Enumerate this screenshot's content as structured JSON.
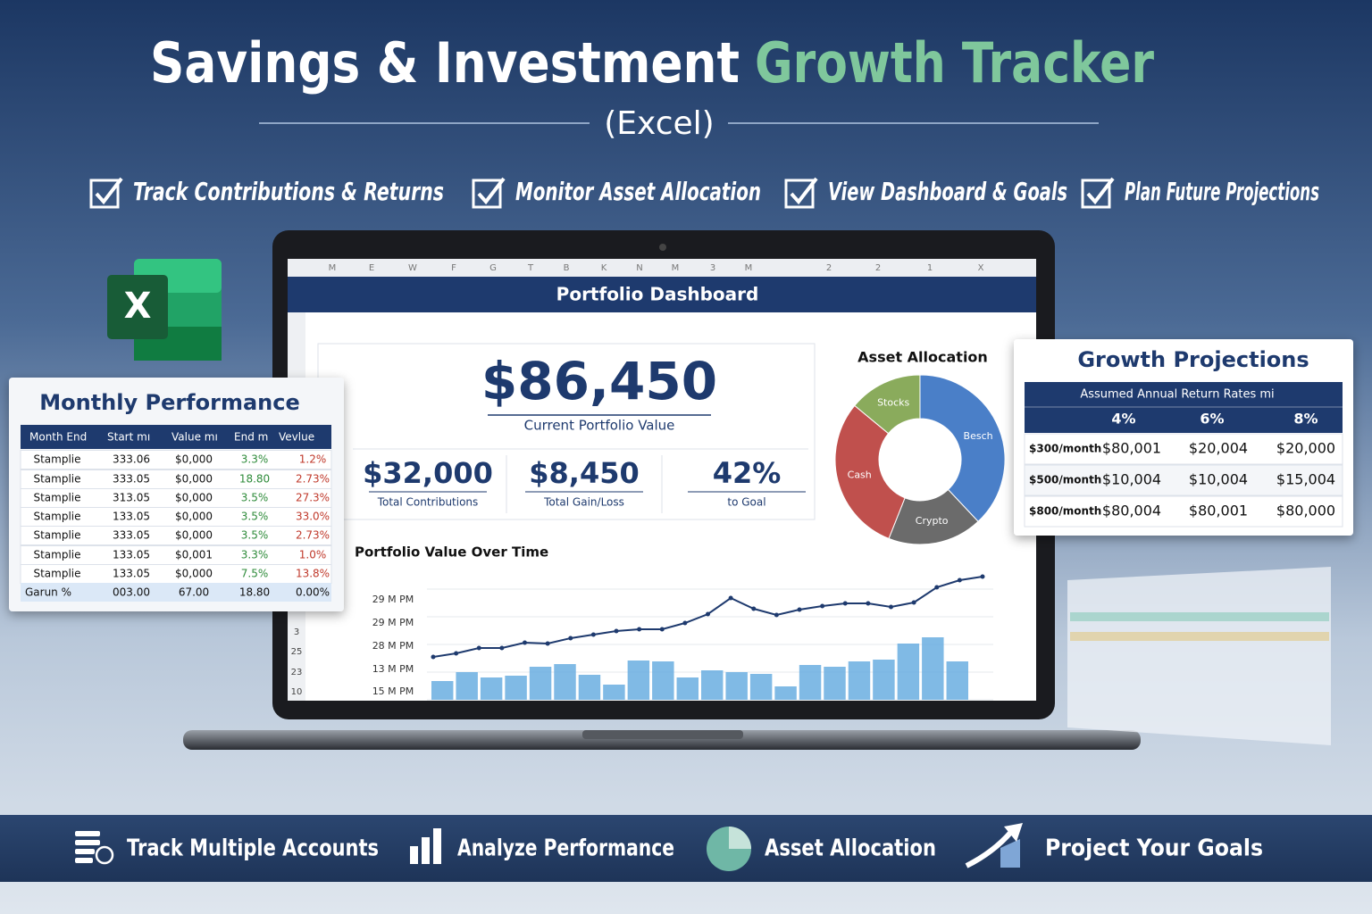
{
  "header": {
    "title_main": "Savings & Investment",
    "title_accent": "Growth Tracker",
    "subtitle": "(Excel)"
  },
  "features": [
    "Track Contributions & Returns",
    "Monitor Asset Allocation",
    "View Dashboard & Goals",
    "Plan Future Projections"
  ],
  "dashboard": {
    "toolbar": [
      "M",
      "E",
      "W",
      "F",
      "G",
      "T",
      "B",
      "K",
      "N",
      "M",
      "3",
      "M",
      "2",
      "2",
      "1",
      "X"
    ],
    "row_numbers": [
      "3",
      "25",
      "23",
      "10"
    ],
    "title": "Portfolio Dashboard",
    "main_kpi": {
      "value": "$86,450",
      "label": "Current Portfolio Value"
    },
    "kpis": [
      {
        "value": "$32,000",
        "label": "Total Contributions"
      },
      {
        "value": "$8,450",
        "label": "Total Gain/Loss"
      },
      {
        "value": "42%",
        "label": "to Goal"
      }
    ]
  },
  "chart_data": [
    {
      "type": "pie",
      "title": "Asset Allocation",
      "categories": [
        "Stocks",
        "Besch",
        "Crypto",
        "Cash"
      ],
      "values": [
        14,
        38,
        18,
        30
      ],
      "colors": [
        "#8aab5c",
        "#4a7fc8",
        "#6b6b6b",
        "#c0504d"
      ],
      "donut": true
    },
    {
      "type": "combo",
      "title": "Portfolio Value Over Time",
      "y_axis_labels": [
        "29 M PM",
        "29 M PM",
        "28 M PM",
        "13 M PM",
        "15 M PM"
      ],
      "ylim": [
        0,
        150
      ],
      "series": [
        {
          "type": "line",
          "color": "#1e3a6e",
          "values": [
            48,
            52,
            58,
            58,
            64,
            63,
            69,
            73,
            77,
            79,
            79,
            86,
            96,
            114,
            102,
            95,
            101,
            105,
            108,
            108,
            104,
            109,
            126,
            134,
            138
          ]
        },
        {
          "type": "bar",
          "color": "#6aaee0",
          "values": [
            21,
            31,
            25,
            27,
            37,
            40,
            28,
            17,
            44,
            43,
            25,
            33,
            31,
            29,
            15,
            39,
            37,
            43,
            45,
            63,
            70,
            43
          ]
        }
      ]
    }
  ],
  "monthly": {
    "title": "Monthly Performance",
    "columns": [
      "Month End",
      "Start mı",
      "Value mı",
      "End m",
      "Vevlue"
    ],
    "rows": [
      [
        "Stamplie",
        "333.06",
        "$0,000",
        "3.3%",
        "1.2%"
      ],
      [
        "Stamplie",
        "333.05",
        "$0,000",
        "18.80",
        "2.73%"
      ],
      [
        "Stamplie",
        "313.05",
        "$0,000",
        "3.5%",
        "27.3%"
      ],
      [
        "Stamplie",
        "133.05",
        "$0,000",
        "3.5%",
        "33.0%"
      ],
      [
        "Stamplie",
        "333.05",
        "$0,000",
        "3.5%",
        "2.73%"
      ],
      [
        "Stamplie",
        "133.05",
        "$0,001",
        "3.3%",
        "1.0%"
      ],
      [
        "Stamplie",
        "133.05",
        "$0,000",
        "7.5%",
        "13.8%"
      ]
    ],
    "total": [
      "Garun %",
      "003.00",
      "67.00",
      "18.80",
      "0.00%"
    ]
  },
  "projections": {
    "title": "Growth Projections",
    "subtitle": "Assumed Annual Return Rates mi",
    "rates": [
      "4%",
      "6%",
      "8%"
    ],
    "rows": [
      [
        "$300/month",
        "$80,001",
        "$20,004",
        "$20,000"
      ],
      [
        "$500/month",
        "$10,004",
        "$10,004",
        "$15,004"
      ],
      [
        "$800/month",
        "$80,004",
        "$80,001",
        "$80,000"
      ]
    ]
  },
  "footer": [
    "Track Multiple Accounts",
    "Analyze Performance",
    "Asset Allocation",
    "Project Your Goals"
  ]
}
